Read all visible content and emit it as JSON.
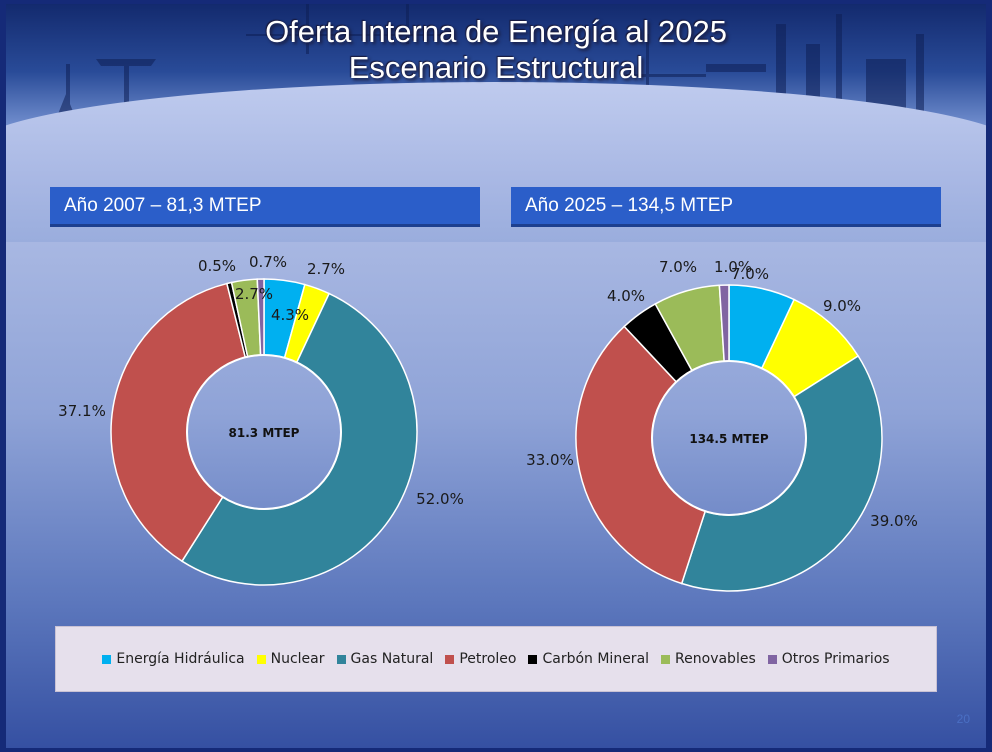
{
  "slide": {
    "title_line1": "Oferta Interna de Energía al 2025",
    "title_line2": "Escenario Estructural",
    "page_number": "20"
  },
  "panels": {
    "left_header": "Año 2007 – 81,3 MTEP",
    "right_header": "Año 2025 – 134,5 MTEP"
  },
  "colors": {
    "Energía Hidráulica": "#00b0f0",
    "Nuclear": "#ffff00",
    "Gas Natural": "#31849b",
    "Petroleo": "#c0504d",
    "Carbón Mineral": "#000000",
    "Renovables": "#9bbb59",
    "Otros Primarios": "#8064a2"
  },
  "legend": [
    "Energía Hidráulica",
    "Nuclear",
    "Gas Natural",
    "Petroleo",
    "Carbón Mineral",
    "Renovables",
    "Otros Primarios"
  ],
  "chart_data": [
    {
      "type": "pie",
      "variant": "doughnut",
      "title": "Año 2007 – 81,3 MTEP",
      "center_label": "81.3 MTEP",
      "categories": [
        "Energía Hidráulica",
        "Nuclear",
        "Gas Natural",
        "Petroleo",
        "Carbón Mineral",
        "Renovables",
        "Otros Primarios"
      ],
      "values": [
        4.3,
        2.7,
        52.0,
        37.1,
        0.5,
        2.7,
        0.7
      ],
      "labels": [
        "4.3%",
        "2.7%",
        "52.0%",
        "37.1%",
        "0.5%",
        "2.7%",
        "0.7%"
      ]
    },
    {
      "type": "pie",
      "variant": "doughnut",
      "title": "Año 2025 – 134,5 MTEP",
      "center_label": "134.5 MTEP",
      "categories": [
        "Energía Hidráulica",
        "Nuclear",
        "Gas Natural",
        "Petroleo",
        "Carbón Mineral",
        "Renovables",
        "Otros Primarios"
      ],
      "values": [
        7.0,
        9.0,
        39.0,
        33.0,
        4.0,
        7.0,
        1.0
      ],
      "labels": [
        "7.0%",
        "9.0%",
        "39.0%",
        "33.0%",
        "4.0%",
        "7.0%",
        "1.0%"
      ]
    }
  ]
}
